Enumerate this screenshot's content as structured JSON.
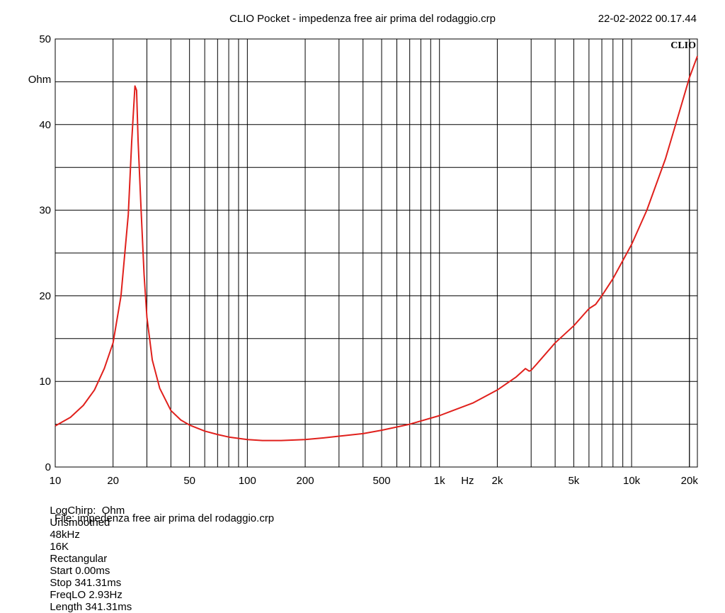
{
  "header": {
    "title": "CLIO Pocket - impedenza free air prima del rodaggio.crp",
    "timestamp": "22-02-2022 00.17.44"
  },
  "brand": "CLIO",
  "chart_data": {
    "type": "line",
    "x_scale": "log",
    "xlim": [
      10,
      22000
    ],
    "ylim": [
      0,
      50
    ],
    "ylabel": "Ohm",
    "xlabel": "Hz",
    "grid": true,
    "y_ticks": [
      {
        "value": 0,
        "label": "0"
      },
      {
        "value": 10,
        "label": "10"
      },
      {
        "value": 20,
        "label": "20"
      },
      {
        "value": 30,
        "label": "30"
      },
      {
        "value": 40,
        "label": "40"
      },
      {
        "value": 50,
        "label": "50"
      }
    ],
    "x_ticks": [
      {
        "value": 10,
        "label": "10"
      },
      {
        "value": 20,
        "label": "20"
      },
      {
        "value": 50,
        "label": "50"
      },
      {
        "value": 100,
        "label": "100"
      },
      {
        "value": 200,
        "label": "200"
      },
      {
        "value": 500,
        "label": "500"
      },
      {
        "value": 1000,
        "label": "1k"
      },
      {
        "value": 2000,
        "label": "2k"
      },
      {
        "value": 5000,
        "label": "5k"
      },
      {
        "value": 10000,
        "label": "10k"
      },
      {
        "value": 20000,
        "label": "20k"
      }
    ],
    "series": [
      {
        "color": "#e0201c",
        "x": [
          10,
          12,
          14,
          16,
          18,
          20,
          22,
          24,
          25,
          26,
          26.5,
          27,
          28,
          29,
          30,
          32,
          35,
          40,
          45,
          50,
          60,
          70,
          80,
          100,
          120,
          150,
          200,
          250,
          300,
          400,
          500,
          700,
          1000,
          1500,
          2000,
          2500,
          2800,
          2930,
          3000,
          3200,
          4000,
          5000,
          6000,
          6500,
          7000,
          8000,
          10000,
          12000,
          15000,
          18000,
          20000,
          22000
        ],
        "y": [
          4.8,
          5.8,
          7.2,
          9.0,
          11.5,
          14.5,
          20.0,
          29.5,
          38.0,
          44.5,
          44.0,
          38.0,
          30.0,
          22.5,
          17.5,
          12.5,
          9.2,
          6.6,
          5.5,
          4.9,
          4.2,
          3.8,
          3.5,
          3.2,
          3.1,
          3.1,
          3.2,
          3.4,
          3.6,
          3.9,
          4.3,
          5.0,
          6.0,
          7.5,
          9.0,
          10.5,
          11.5,
          11.2,
          11.3,
          12.0,
          14.5,
          16.5,
          18.5,
          19.0,
          20.0,
          22.0,
          26.0,
          30.0,
          36.0,
          42.0,
          45.5,
          48.0
        ]
      }
    ]
  },
  "footer": {
    "params": [
      "LogChirp:  Ohm",
      "Unsmoothed",
      "48kHz",
      "16K",
      "Rectangular",
      "Start 0.00ms",
      "Stop 341.31ms",
      "FreqLO 2.93Hz",
      "Length 341.31ms"
    ],
    "file": "File: impedenza free air prima del rodaggio.crp"
  }
}
